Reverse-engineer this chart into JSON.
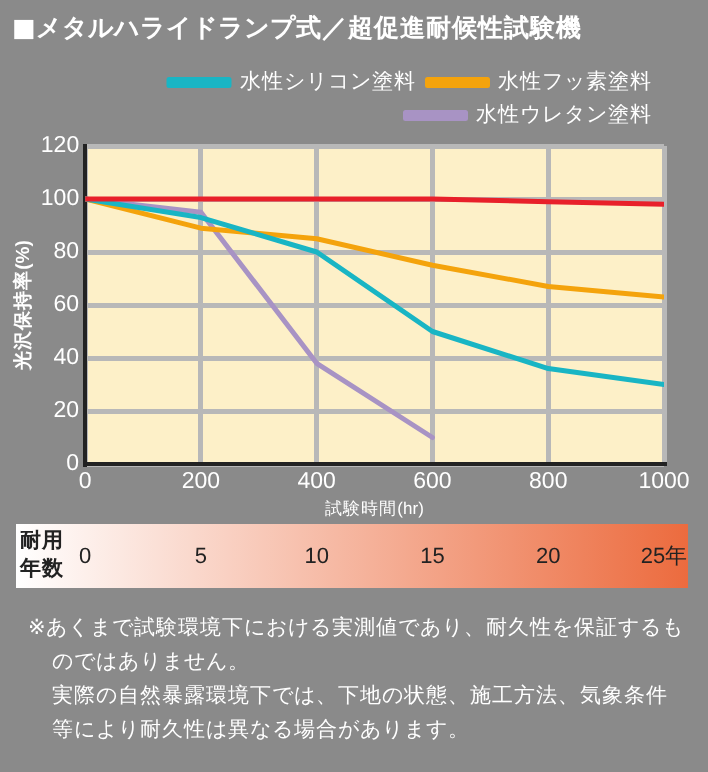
{
  "chart_data": {
    "type": "line",
    "title": "■メタルハライドランプ式／超促進耐候性試験機",
    "xlabel": "試験時間(hr)",
    "ylabel": "光沢保持率(%)",
    "x2label": "耐用年数",
    "x": [
      0,
      200,
      400,
      600,
      800,
      1000
    ],
    "series": [
      {
        "color": "#e8202a",
        "values": [
          100,
          100,
          100,
          100,
          99,
          98
        ]
      },
      {
        "name": "水性シリコン塗料",
        "color": "#19b5c4",
        "values": [
          100,
          93,
          80,
          50,
          36,
          30
        ]
      },
      {
        "name": "水性フッ素塗料",
        "color": "#f4a30c",
        "values": [
          100,
          89,
          85,
          75,
          67,
          63
        ]
      },
      {
        "name": "水性ウレタン塗料",
        "color": "#a893c4",
        "values": [
          100,
          95,
          38,
          10,
          null,
          null
        ]
      }
    ],
    "xlim": [
      0,
      1000
    ],
    "xticks": [
      0,
      200,
      400,
      600,
      800,
      1000
    ],
    "ylim": [
      0,
      120
    ],
    "yticks": [
      0,
      20,
      40,
      60,
      80,
      100,
      120
    ],
    "x2lim": [
      0,
      25
    ],
    "x2ticks": [
      0,
      5,
      10,
      15,
      20,
      {
        "value": 25,
        "label": "25年"
      }
    ],
    "grid": true,
    "legend": "top right",
    "marker": "none",
    "line_style": "solid",
    "annotations": [
      "※あくまで試験環境下における実測値であり、耐久性を保証するものではありません。",
      "実際の自然暴露環境下では、下地の状態、施工方法、気象条件等により耐久性は異なる場合があります。"
    ]
  }
}
